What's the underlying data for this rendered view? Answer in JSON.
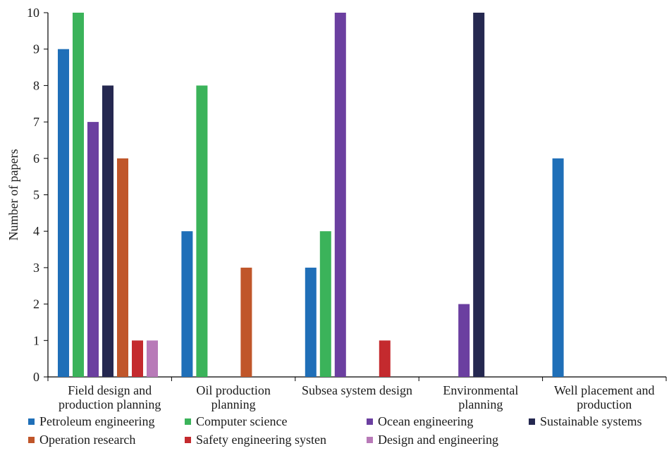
{
  "chart_data": {
    "type": "bar",
    "ylabel": "Number of papers",
    "xlabel": "",
    "ylim": [
      0,
      10
    ],
    "yticks": [
      "0",
      "1",
      "2",
      "3",
      "4",
      "5",
      "6",
      "7",
      "8",
      "9",
      "10"
    ],
    "categories": [
      [
        "Field design and",
        "production planning"
      ],
      [
        "Oil production",
        "planning"
      ],
      [
        "Subsea system design"
      ],
      [
        "Environmental",
        "planning"
      ],
      [
        "Well placement and",
        "production"
      ]
    ],
    "series": [
      {
        "name": "Petroleum engineering",
        "color": "#1f6fb8",
        "values": [
          9,
          4,
          3,
          0,
          6
        ]
      },
      {
        "name": "Computer science",
        "color": "#3bb35a",
        "values": [
          10,
          8,
          4,
          0,
          0
        ]
      },
      {
        "name": "Ocean engineering",
        "color": "#6b3fa0",
        "values": [
          7,
          0,
          10,
          2,
          0
        ]
      },
      {
        "name": "Sustainable systems",
        "color": "#252850",
        "values": [
          8,
          0,
          0,
          10,
          0
        ]
      },
      {
        "name": "Operation research",
        "color": "#c0562a",
        "values": [
          6,
          3,
          0,
          0,
          0
        ]
      },
      {
        "name": "Safety engineering systen",
        "color": "#c42a2e",
        "values": [
          1,
          0,
          1,
          0,
          0
        ]
      },
      {
        "name": "Design and engineering",
        "color": "#b87ab8",
        "values": [
          1,
          0,
          0,
          0,
          0
        ]
      }
    ],
    "legend_position": "bottom",
    "grid": false
  }
}
